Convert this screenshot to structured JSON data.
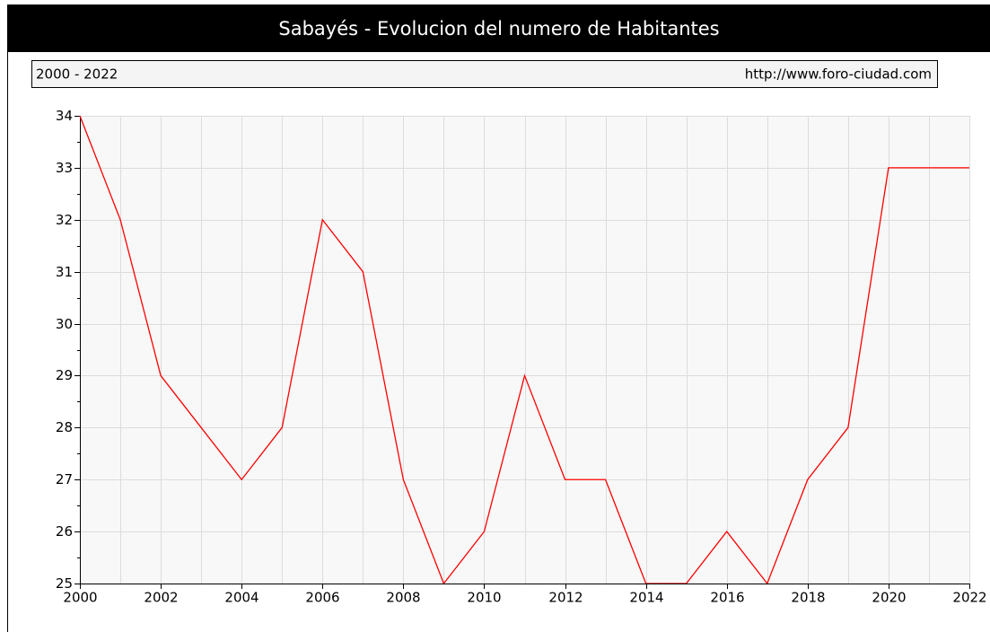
{
  "chart_data": {
    "type": "line",
    "title": "Sabayés - Evolucion del numero de Habitantes",
    "subtitle": "2000 - 2022",
    "source": "http://www.foro-ciudad.com",
    "x": [
      2000,
      2001,
      2002,
      2003,
      2004,
      2005,
      2006,
      2007,
      2008,
      2009,
      2010,
      2011,
      2012,
      2013,
      2014,
      2015,
      2016,
      2017,
      2018,
      2019,
      2020,
      2021,
      2022
    ],
    "series": [
      {
        "name": "Habitantes",
        "color": "#ff0000",
        "values": [
          34,
          32,
          29,
          28,
          27,
          28,
          32,
          31,
          27,
          25,
          26,
          29,
          27,
          27,
          25,
          25,
          26,
          25,
          27,
          28,
          33,
          33,
          33
        ]
      }
    ],
    "xlim": [
      2000,
      2022
    ],
    "xticks": [
      2000,
      2002,
      2004,
      2006,
      2008,
      2010,
      2012,
      2014,
      2016,
      2018,
      2020,
      2022
    ],
    "ylim": [
      25,
      34
    ],
    "yticks": [
      25,
      26,
      27,
      28,
      29,
      30,
      31,
      32,
      33,
      34
    ],
    "grid": true
  }
}
